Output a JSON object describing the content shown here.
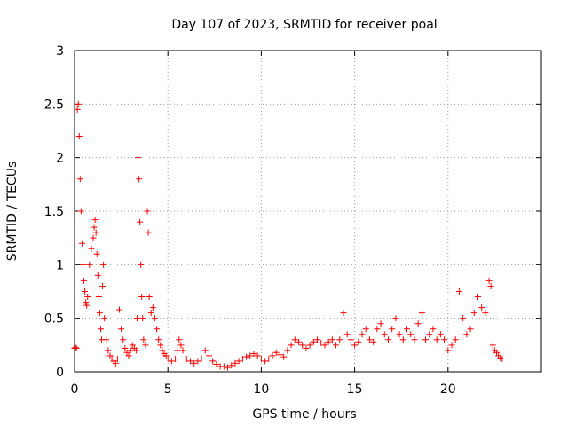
{
  "chart_data": {
    "type": "scatter",
    "title": "Day 107 of 2023, SRMTID for receiver poal",
    "xlabel": "GPS time / hours",
    "ylabel": "SRMTID / TECUs",
    "xlim": [
      0,
      25
    ],
    "ylim": [
      0,
      3
    ],
    "x_ticks": [
      0,
      5,
      10,
      15,
      20
    ],
    "y_ticks": [
      0,
      0.5,
      1,
      1.5,
      2,
      2.5,
      3
    ],
    "x_tick_labels": [
      "0",
      "5",
      "10",
      "15",
      "20"
    ],
    "y_tick_labels": [
      "0",
      "0.5",
      "1",
      "1.5",
      "2",
      "2.5",
      "3"
    ],
    "grid": true,
    "marker": "+",
    "color": "#ff0000",
    "series": [
      {
        "name": "SRMTID",
        "points": [
          [
            0.0,
            0.22
          ],
          [
            0.05,
            0.23
          ],
          [
            0.1,
            0.22
          ],
          [
            0.15,
            2.45
          ],
          [
            0.2,
            2.5
          ],
          [
            0.25,
            2.2
          ],
          [
            0.3,
            1.8
          ],
          [
            0.35,
            1.5
          ],
          [
            0.4,
            1.2
          ],
          [
            0.45,
            1.0
          ],
          [
            0.5,
            0.85
          ],
          [
            0.55,
            0.75
          ],
          [
            0.6,
            0.65
          ],
          [
            0.65,
            0.62
          ],
          [
            0.7,
            0.7
          ],
          [
            0.8,
            1.0
          ],
          [
            0.9,
            1.15
          ],
          [
            1.0,
            1.25
          ],
          [
            1.05,
            1.35
          ],
          [
            1.1,
            1.42
          ],
          [
            1.15,
            1.3
          ],
          [
            1.2,
            1.1
          ],
          [
            1.25,
            0.9
          ],
          [
            1.3,
            0.7
          ],
          [
            1.35,
            0.55
          ],
          [
            1.4,
            0.4
          ],
          [
            1.45,
            0.3
          ],
          [
            1.5,
            0.8
          ],
          [
            1.55,
            1.0
          ],
          [
            1.6,
            0.5
          ],
          [
            1.7,
            0.3
          ],
          [
            1.8,
            0.2
          ],
          [
            1.9,
            0.15
          ],
          [
            2.0,
            0.12
          ],
          [
            2.1,
            0.1
          ],
          [
            2.2,
            0.08
          ],
          [
            2.3,
            0.12
          ],
          [
            2.4,
            0.58
          ],
          [
            2.5,
            0.4
          ],
          [
            2.6,
            0.3
          ],
          [
            2.7,
            0.22
          ],
          [
            2.8,
            0.18
          ],
          [
            2.9,
            0.15
          ],
          [
            3.0,
            0.2
          ],
          [
            3.1,
            0.25
          ],
          [
            3.2,
            0.22
          ],
          [
            3.3,
            0.2
          ],
          [
            3.35,
            0.5
          ],
          [
            3.4,
            2.0
          ],
          [
            3.45,
            1.8
          ],
          [
            3.5,
            1.4
          ],
          [
            3.55,
            1.0
          ],
          [
            3.6,
            0.7
          ],
          [
            3.65,
            0.5
          ],
          [
            3.7,
            0.3
          ],
          [
            3.8,
            0.25
          ],
          [
            3.9,
            1.5
          ],
          [
            3.95,
            1.3
          ],
          [
            4.0,
            0.7
          ],
          [
            4.1,
            0.55
          ],
          [
            4.2,
            0.6
          ],
          [
            4.3,
            0.5
          ],
          [
            4.4,
            0.4
          ],
          [
            4.5,
            0.3
          ],
          [
            4.6,
            0.25
          ],
          [
            4.7,
            0.2
          ],
          [
            4.8,
            0.17
          ],
          [
            4.9,
            0.15
          ],
          [
            5.0,
            0.12
          ],
          [
            5.2,
            0.1
          ],
          [
            5.4,
            0.12
          ],
          [
            5.5,
            0.2
          ],
          [
            5.6,
            0.3
          ],
          [
            5.7,
            0.25
          ],
          [
            5.8,
            0.2
          ],
          [
            6.0,
            0.12
          ],
          [
            6.2,
            0.1
          ],
          [
            6.4,
            0.08
          ],
          [
            6.6,
            0.1
          ],
          [
            6.8,
            0.12
          ],
          [
            7.0,
            0.2
          ],
          [
            7.2,
            0.15
          ],
          [
            7.4,
            0.1
          ],
          [
            7.6,
            0.07
          ],
          [
            7.8,
            0.05
          ],
          [
            8.0,
            0.05
          ],
          [
            8.2,
            0.04
          ],
          [
            8.4,
            0.06
          ],
          [
            8.6,
            0.08
          ],
          [
            8.8,
            0.1
          ],
          [
            9.0,
            0.12
          ],
          [
            9.2,
            0.14
          ],
          [
            9.4,
            0.15
          ],
          [
            9.6,
            0.17
          ],
          [
            9.8,
            0.15
          ],
          [
            10.0,
            0.12
          ],
          [
            10.2,
            0.1
          ],
          [
            10.4,
            0.12
          ],
          [
            10.6,
            0.15
          ],
          [
            10.8,
            0.18
          ],
          [
            11.0,
            0.16
          ],
          [
            11.2,
            0.14
          ],
          [
            11.4,
            0.2
          ],
          [
            11.6,
            0.25
          ],
          [
            11.8,
            0.3
          ],
          [
            12.0,
            0.28
          ],
          [
            12.2,
            0.25
          ],
          [
            12.4,
            0.22
          ],
          [
            12.6,
            0.25
          ],
          [
            12.8,
            0.28
          ],
          [
            13.0,
            0.3
          ],
          [
            13.2,
            0.27
          ],
          [
            13.4,
            0.25
          ],
          [
            13.6,
            0.28
          ],
          [
            13.8,
            0.3
          ],
          [
            14.0,
            0.25
          ],
          [
            14.2,
            0.3
          ],
          [
            14.4,
            0.55
          ],
          [
            14.6,
            0.35
          ],
          [
            14.8,
            0.3
          ],
          [
            15.0,
            0.25
          ],
          [
            15.2,
            0.28
          ],
          [
            15.4,
            0.35
          ],
          [
            15.6,
            0.4
          ],
          [
            15.8,
            0.3
          ],
          [
            16.0,
            0.28
          ],
          [
            16.2,
            0.4
          ],
          [
            16.4,
            0.45
          ],
          [
            16.6,
            0.35
          ],
          [
            16.8,
            0.3
          ],
          [
            17.0,
            0.4
          ],
          [
            17.2,
            0.5
          ],
          [
            17.4,
            0.35
          ],
          [
            17.6,
            0.3
          ],
          [
            17.8,
            0.4
          ],
          [
            18.0,
            0.35
          ],
          [
            18.2,
            0.3
          ],
          [
            18.4,
            0.45
          ],
          [
            18.6,
            0.55
          ],
          [
            18.8,
            0.3
          ],
          [
            19.0,
            0.35
          ],
          [
            19.2,
            0.4
          ],
          [
            19.4,
            0.3
          ],
          [
            19.6,
            0.35
          ],
          [
            19.8,
            0.3
          ],
          [
            20.0,
            0.2
          ],
          [
            20.2,
            0.25
          ],
          [
            20.4,
            0.3
          ],
          [
            20.6,
            0.75
          ],
          [
            20.8,
            0.5
          ],
          [
            21.0,
            0.35
          ],
          [
            21.2,
            0.4
          ],
          [
            21.4,
            0.55
          ],
          [
            21.6,
            0.7
          ],
          [
            21.8,
            0.6
          ],
          [
            22.0,
            0.55
          ],
          [
            22.2,
            0.85
          ],
          [
            22.3,
            0.8
          ],
          [
            22.4,
            0.25
          ],
          [
            22.5,
            0.2
          ],
          [
            22.6,
            0.18
          ],
          [
            22.7,
            0.15
          ],
          [
            22.8,
            0.13
          ],
          [
            22.9,
            0.12
          ]
        ]
      }
    ]
  }
}
